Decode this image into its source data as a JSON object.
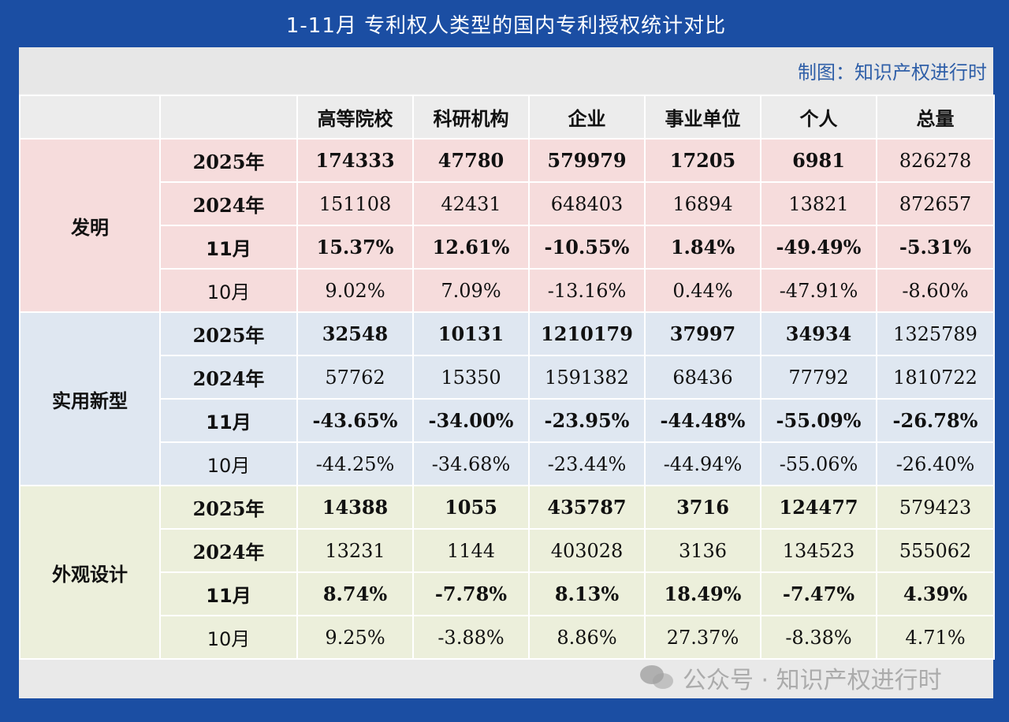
{
  "title": "1-11月 专利权人类型的国内专利授权统计对比",
  "credit": "制图：知识产权进行时",
  "columns": [
    "高等院校",
    "科研机构",
    "企业",
    "事业单位",
    "个人",
    "总量"
  ],
  "sections": [
    {
      "name": "发明",
      "rows": [
        {
          "label": "2025年",
          "values": [
            "174333",
            "47780",
            "579979",
            "17205",
            "6981",
            "826278"
          ]
        },
        {
          "label": "2024年",
          "values": [
            "151108",
            "42431",
            "648403",
            "16894",
            "13821",
            "872657"
          ]
        },
        {
          "label": "11月",
          "values": [
            "15.37%",
            "12.61%",
            "-10.55%",
            "1.84%",
            "-49.49%",
            "-5.31%"
          ]
        },
        {
          "label": "10月",
          "values": [
            "9.02%",
            "7.09%",
            "-13.16%",
            "0.44%",
            "-47.91%",
            "-8.60%"
          ]
        }
      ]
    },
    {
      "name": "实用新型",
      "rows": [
        {
          "label": "2025年",
          "values": [
            "32548",
            "10131",
            "1210179",
            "37997",
            "34934",
            "1325789"
          ]
        },
        {
          "label": "2024年",
          "values": [
            "57762",
            "15350",
            "1591382",
            "68436",
            "77792",
            "1810722"
          ]
        },
        {
          "label": "11月",
          "values": [
            "-43.65%",
            "-34.00%",
            "-23.95%",
            "-44.48%",
            "-55.09%",
            "-26.78%"
          ]
        },
        {
          "label": "10月",
          "values": [
            "-44.25%",
            "-34.68%",
            "-23.44%",
            "-44.94%",
            "-55.06%",
            "-26.40%"
          ]
        }
      ]
    },
    {
      "name": "外观设计",
      "rows": [
        {
          "label": "2025年",
          "values": [
            "14388",
            "1055",
            "435787",
            "3716",
            "124477",
            "579423"
          ]
        },
        {
          "label": "2024年",
          "values": [
            "13231",
            "1144",
            "403028",
            "3136",
            "134523",
            "555062"
          ]
        },
        {
          "label": "11月",
          "values": [
            "8.74%",
            "-7.78%",
            "8.13%",
            "18.49%",
            "-7.47%",
            "4.39%"
          ]
        },
        {
          "label": "10月",
          "values": [
            "9.25%",
            "-3.88%",
            "8.86%",
            "27.37%",
            "-8.38%",
            "4.71%"
          ]
        }
      ]
    }
  ],
  "watermark": "公众号 · 知识产权进行时",
  "colors": {
    "frame": "#1b4ea3",
    "invention_bg": "#f6dcdc",
    "utility_bg": "#dfe7f1",
    "design_bg": "#ecefdb",
    "negative": "#c8141e",
    "positive": "#2c5aa6"
  }
}
